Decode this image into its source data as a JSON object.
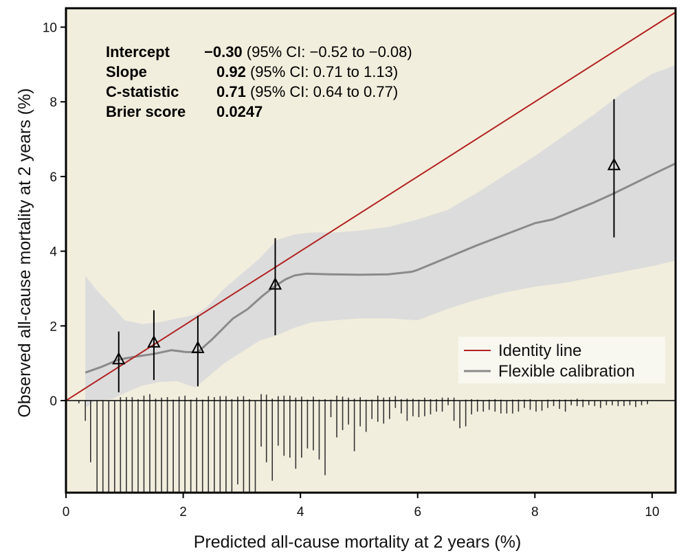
{
  "chart_data": {
    "type": "line",
    "title": "",
    "xlabel": "Predicted all-cause mortality at 2 years (%)",
    "ylabel": "Observed all-cause mortality at 2 years (%)",
    "xlim": [
      0,
      10.4
    ],
    "ylim": [
      -2.47,
      10.5
    ],
    "xticks": [
      0,
      2,
      4,
      6,
      8,
      10
    ],
    "yticks": [
      0,
      2,
      4,
      6,
      8,
      10
    ],
    "grid": false,
    "colors": {
      "background": "#f2eedd",
      "identity": "#b22222",
      "calibration": "#8a8a8a",
      "ci_band": "#dcdcdc",
      "points": "#000000",
      "legend_bg": "#f8f7f0"
    },
    "stats": [
      {
        "label": "Intercept",
        "value": "−0.30",
        "ci": "(95% CI: −0.52 to −0.08)"
      },
      {
        "label": "Slope",
        "value": "0.92",
        "ci": "(95% CI: 0.71 to 1.13)"
      },
      {
        "label": "C-statistic",
        "value": "0.71",
        "ci": "(95% CI: 0.64 to 0.77)"
      },
      {
        "label": "Brier score",
        "value": "0.0247",
        "ci": ""
      }
    ],
    "legend": {
      "position": "bottom-right",
      "entries": [
        {
          "label": "Identity line",
          "series": "identity"
        },
        {
          "label": "Flexible calibration",
          "series": "calibration"
        }
      ]
    },
    "series": [
      {
        "name": "Identity line",
        "x": [
          0,
          10.4
        ],
        "y": [
          0,
          10.4
        ]
      },
      {
        "name": "Flexible calibration",
        "x": [
          0.33,
          0.6,
          0.9,
          1.2,
          1.5,
          1.8,
          2.05,
          2.25,
          2.5,
          2.85,
          3.1,
          3.35,
          3.55,
          3.75,
          3.9,
          4.1,
          4.5,
          5.0,
          5.5,
          5.9,
          6.0,
          7.0,
          8.0,
          8.3,
          9.0,
          9.35,
          10.0,
          10.4
        ],
        "y": [
          0.75,
          0.9,
          1.1,
          1.18,
          1.25,
          1.35,
          1.3,
          1.3,
          1.65,
          2.2,
          2.45,
          2.8,
          3.05,
          3.25,
          3.35,
          3.4,
          3.38,
          3.37,
          3.38,
          3.45,
          3.5,
          4.15,
          4.75,
          4.85,
          5.3,
          5.55,
          6.05,
          6.35
        ]
      },
      {
        "name": "Calibration 95% CI",
        "x": [
          0.33,
          0.5,
          0.8,
          1.0,
          1.3,
          1.6,
          1.9,
          2.2,
          2.4,
          2.7,
          3.0,
          3.3,
          3.6,
          3.9,
          4.2,
          4.6,
          5.0,
          5.5,
          6.0,
          6.5,
          7.0,
          7.5,
          8.0,
          8.5,
          9.0,
          9.5,
          10.0,
          10.4
        ],
        "upper": [
          3.35,
          3.0,
          2.5,
          2.15,
          2.05,
          2.1,
          2.2,
          2.3,
          2.5,
          3.0,
          3.4,
          3.8,
          4.3,
          4.45,
          4.5,
          4.5,
          4.55,
          4.65,
          4.85,
          5.1,
          5.55,
          6.05,
          6.55,
          7.1,
          7.65,
          8.25,
          8.75,
          8.98
        ],
        "lower": [
          -0.2,
          0.0,
          0.05,
          0.2,
          0.4,
          0.5,
          0.52,
          0.35,
          0.6,
          1.0,
          1.3,
          1.6,
          1.75,
          1.95,
          2.1,
          2.15,
          2.2,
          2.2,
          2.15,
          2.45,
          2.7,
          2.9,
          3.05,
          3.15,
          3.3,
          3.45,
          3.6,
          3.75
        ]
      }
    ],
    "points": [
      {
        "x": 0.9,
        "y": 1.1,
        "lo": 0.22,
        "hi": 1.85
      },
      {
        "x": 1.5,
        "y": 1.55,
        "lo": 0.55,
        "hi": 2.42
      },
      {
        "x": 2.25,
        "y": 1.4,
        "lo": 0.38,
        "hi": 2.27
      },
      {
        "x": 3.57,
        "y": 3.1,
        "lo": 1.75,
        "hi": 4.35
      },
      {
        "x": 9.35,
        "y": 6.3,
        "lo": 4.37,
        "hi": 8.07
      }
    ],
    "spikes": {
      "note": "relative frequency (1 = full histogram depth, clipped); events above, non-events below",
      "x": [
        0.22,
        0.33,
        0.42,
        0.53,
        0.63,
        0.73,
        0.83,
        0.93,
        1.03,
        1.13,
        1.23,
        1.33,
        1.43,
        1.53,
        1.63,
        1.73,
        1.83,
        1.93,
        2.03,
        2.13,
        2.23,
        2.33,
        2.43,
        2.53,
        2.63,
        2.73,
        2.83,
        2.93,
        3.03,
        3.13,
        3.23,
        3.33,
        3.42,
        3.52,
        3.62,
        3.72,
        3.82,
        3.92,
        4.02,
        4.12,
        4.22,
        4.32,
        4.42,
        4.52,
        4.62,
        4.72,
        4.82,
        4.92,
        5.02,
        5.12,
        5.22,
        5.32,
        5.42,
        5.52,
        5.62,
        5.72,
        5.82,
        5.92,
        6.02,
        6.12,
        6.22,
        6.32,
        6.42,
        6.52,
        6.62,
        6.72,
        6.82,
        6.92,
        7.02,
        7.12,
        7.22,
        7.32,
        7.42,
        7.52,
        7.62,
        7.72,
        7.82,
        7.92,
        8.02,
        8.12,
        8.22,
        8.32,
        8.42,
        8.52,
        8.62,
        8.72,
        8.82,
        8.92,
        9.02,
        9.12,
        9.22,
        9.32,
        9.42,
        9.52,
        9.62,
        9.72,
        9.82,
        9.92
      ],
      "below": [
        0.03,
        0.22,
        0.67,
        1,
        1,
        1,
        1,
        1,
        1,
        1,
        1,
        1,
        1,
        1,
        1,
        1,
        1,
        1,
        1,
        1,
        1,
        1,
        1,
        1,
        1,
        1,
        1,
        0.91,
        1,
        1,
        1,
        0.5,
        0.67,
        0.87,
        0.49,
        0.6,
        0.62,
        0.74,
        0.62,
        0.52,
        0.54,
        0.64,
        0.81,
        0.18,
        0.4,
        0.32,
        0.26,
        0.55,
        0.28,
        0.34,
        0.2,
        0.23,
        0.25,
        0.2,
        0.08,
        0.14,
        0.22,
        0.17,
        0.18,
        0.17,
        0.15,
        0.12,
        0.12,
        0.05,
        0.22,
        0.3,
        0.28,
        0.15,
        0.12,
        0.12,
        0.1,
        0.12,
        0.14,
        0.14,
        0.14,
        0.12,
        0.08,
        0.1,
        0.12,
        0.11,
        0.08,
        0.06,
        0.09,
        0.12,
        0.05,
        0.06,
        0.07,
        0.05,
        0.06,
        0.08,
        0.05,
        0.05,
        0.06,
        0.06,
        0.05,
        0.07,
        0.05,
        0.04
      ],
      "above": [
        0,
        0,
        0,
        0,
        0,
        0,
        0,
        0.07,
        0.07,
        0.07,
        0.03,
        0.1,
        0.13,
        0.04,
        0.06,
        0.07,
        0.02,
        0.08,
        0.1,
        0.02,
        0.06,
        0.02,
        0.09,
        0.07,
        0.09,
        0.09,
        0.03,
        0.08,
        0.09,
        0.03,
        0,
        0.13,
        0.12,
        0.04,
        0.09,
        0.1,
        0.1,
        0.06,
        0.08,
        0.02,
        0.08,
        0.02,
        0.03,
        0.02,
        0.1,
        0.08,
        0.06,
        0.04,
        0.07,
        0.02,
        0.02,
        0.1,
        0.06,
        0.07,
        0.09,
        0.03,
        0.04,
        0.04,
        0.02,
        0.06,
        0.03,
        0.03,
        0.06,
        0.06,
        0.06,
        0,
        0.02,
        0.03,
        0.02,
        0,
        0.02,
        0.03,
        0.02,
        0,
        0.02,
        0.02,
        0.02,
        0.03,
        0,
        0.01,
        0.02,
        0.02,
        0.02,
        0.02,
        0.02,
        0.04,
        0.02,
        0,
        0,
        0,
        0,
        0,
        0,
        0,
        0.01,
        0,
        0,
        0
      ]
    }
  }
}
